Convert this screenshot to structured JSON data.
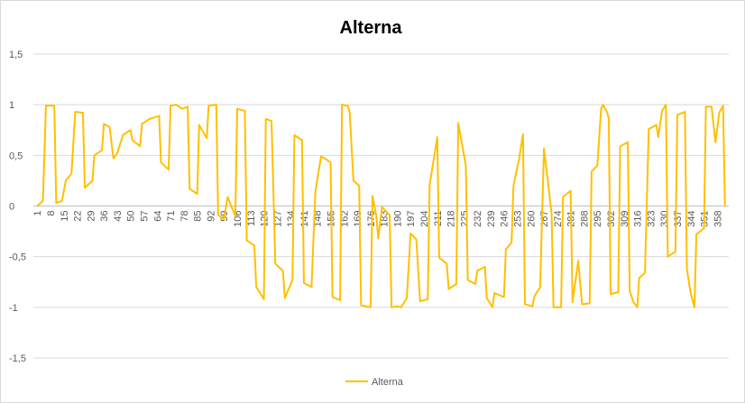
{
  "chart_data": {
    "type": "line",
    "title": "Alterna",
    "x": [
      1,
      4,
      5.6,
      10,
      11,
      14,
      16,
      19,
      21,
      25,
      26,
      30,
      31,
      35,
      36,
      39,
      41,
      43,
      46,
      50,
      51,
      55,
      56,
      60,
      65,
      66,
      70,
      71,
      74,
      77,
      80,
      81,
      85,
      86,
      90,
      91,
      95,
      96,
      99,
      101,
      105,
      106,
      110,
      111,
      115,
      116,
      120,
      121,
      124,
      126,
      130,
      131,
      135,
      136,
      140,
      141,
      145,
      147,
      150,
      152,
      155,
      156,
      160,
      161,
      164,
      165,
      167,
      170,
      171,
      176,
      177,
      179,
      180,
      182,
      186,
      187,
      190,
      192,
      195,
      197,
      200,
      202,
      206,
      207,
      211,
      212,
      216,
      217,
      221,
      222,
      226,
      227,
      231,
      232,
      236,
      237,
      240,
      241,
      246,
      247,
      250,
      251,
      254,
      256,
      257,
      261,
      262,
      265,
      267,
      271,
      272,
      276,
      277,
      281,
      282,
      285,
      287,
      291,
      292,
      295,
      297,
      298,
      300,
      301,
      302,
      306,
      307,
      311,
      312,
      314,
      316,
      317,
      320,
      322,
      326,
      327,
      329,
      331,
      332,
      336,
      337,
      341,
      342,
      344,
      346,
      347,
      351,
      352,
      355,
      357,
      359,
      361,
      362
    ],
    "series": [
      {
        "name": "Alterna",
        "color": "#ffc000",
        "values": [
          0,
          0.05,
          0.99,
          0.99,
          0.03,
          0.05,
          0.25,
          0.32,
          0.93,
          0.92,
          0.18,
          0.25,
          0.5,
          0.55,
          0.81,
          0.78,
          0.47,
          0.52,
          0.7,
          0.75,
          0.65,
          0.59,
          0.81,
          0.86,
          0.89,
          0.43,
          0.36,
          0.99,
          1.0,
          0.96,
          0.98,
          0.17,
          0.12,
          0.8,
          0.67,
          0.99,
          1.0,
          -0.09,
          -0.13,
          0.09,
          -0.1,
          0.96,
          0.94,
          -0.34,
          -0.39,
          -0.8,
          -0.92,
          0.86,
          0.84,
          -0.57,
          -0.64,
          -0.91,
          -0.73,
          0.7,
          0.65,
          -0.76,
          -0.8,
          0.14,
          0.49,
          0.47,
          0.43,
          -0.9,
          -0.93,
          1.0,
          0.99,
          0.93,
          0.25,
          0.2,
          -0.98,
          -1.0,
          0.1,
          -0.1,
          -0.32,
          -0.01,
          -0.09,
          -1.0,
          -0.99,
          -1.0,
          -0.91,
          -0.27,
          -0.33,
          -0.94,
          -0.92,
          0.21,
          0.68,
          -0.51,
          -0.57,
          -0.82,
          -0.77,
          0.82,
          0.4,
          -0.73,
          -0.77,
          -0.64,
          -0.6,
          -0.91,
          -1.0,
          -0.86,
          -0.9,
          -0.43,
          -0.36,
          0.2,
          0.47,
          0.71,
          -0.97,
          -0.99,
          -0.89,
          -0.8,
          0.57,
          -0.07,
          -1.0,
          -1.0,
          0.09,
          0.15,
          -0.95,
          -0.54,
          -0.97,
          -0.96,
          0.34,
          0.4,
          0.96,
          1.0,
          0.93,
          0.87,
          -0.87,
          -0.85,
          0.59,
          0.63,
          -0.84,
          -0.95,
          -1.0,
          -0.71,
          -0.66,
          0.76,
          0.8,
          0.68,
          0.94,
          1.0,
          -0.5,
          -0.45,
          0.9,
          0.93,
          -0.62,
          -0.86,
          -1.0,
          -0.28,
          -0.22,
          0.98,
          0.98,
          0.63,
          0.92,
          0.99,
          0
        ]
      }
    ],
    "xlim": [
      -1,
      364
    ],
    "xticks": [
      1,
      8,
      15,
      22,
      29,
      36,
      43,
      50,
      57,
      64,
      71,
      78,
      85,
      92,
      99,
      106,
      113,
      120,
      127,
      134,
      141,
      148,
      155,
      162,
      169,
      176,
      183,
      190,
      197,
      204,
      211,
      218,
      225,
      232,
      239,
      246,
      253,
      260,
      267,
      274,
      281,
      288,
      295,
      302,
      309,
      316,
      323,
      330,
      337,
      344,
      351,
      358
    ],
    "ylim": [
      -1.5,
      1.5
    ],
    "yticks": [
      {
        "value": 1.5,
        "label": "1,5"
      },
      1,
      {
        "value": 0.5,
        "label": "0,5"
      },
      0,
      {
        "value": -0.5,
        "label": "-0,5"
      },
      -1,
      {
        "value": -1.5,
        "label": "-1,5"
      }
    ],
    "grid": true,
    "legend": "bottom"
  }
}
